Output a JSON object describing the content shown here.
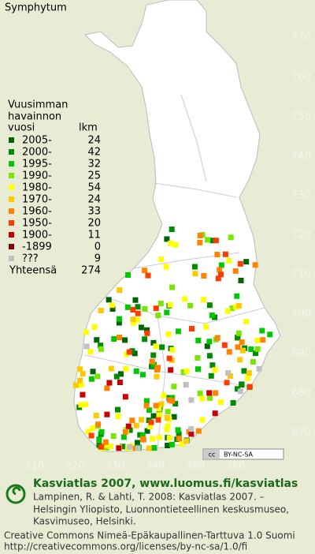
{
  "title": "Symphytum",
  "legend": {
    "heading": [
      "Vuusimman",
      "havainnon",
      "vuosi"
    ],
    "count_heading": "lkm",
    "rows": [
      {
        "label": "2005-",
        "count": 24,
        "color": "#006400"
      },
      {
        "label": "2000-",
        "count": 42,
        "color": "#008c00"
      },
      {
        "label": "1995-",
        "count": 32,
        "color": "#00c800"
      },
      {
        "label": "1990-",
        "count": 25,
        "color": "#78e600"
      },
      {
        "label": "1980-",
        "count": 54,
        "color": "#ffff00"
      },
      {
        "label": "1970-",
        "count": 24,
        "color": "#ffc800"
      },
      {
        "label": "1960-",
        "count": 33,
        "color": "#ff8200"
      },
      {
        "label": "1950-",
        "count": 20,
        "color": "#ff3c00"
      },
      {
        "label": "1900-",
        "count": 11,
        "color": "#c80000"
      },
      {
        "label": "-1899",
        "count": 0,
        "color": "#820000"
      },
      {
        "label": "???",
        "count": 9,
        "color": "#c0c0c0"
      }
    ],
    "total_label": "Yhteensä",
    "total": 274
  },
  "map": {
    "northings": [
      770,
      760,
      750,
      740,
      730,
      720,
      710,
      700,
      690,
      680,
      670
    ],
    "eastings": [
      310,
      320,
      330,
      340,
      350,
      360
    ],
    "cc_icon": "cc",
    "cc_badge": "BY-NC-SA"
  },
  "footer": {
    "site": "Kasviatlas 2007, www.luomus.fi/kasviatlas",
    "citation": [
      "Lampinen, R. & Lahti, T. 2008: Kasviatlas 2007. –",
      "Helsingin Yliopisto, Luonnontieteellinen keskusmuseo,",
      "Kasvimuseo, Helsinki."
    ],
    "license": "Creative Commons Nimeä-Epäkaupallinen-Tarttuva 1.0 Suomi",
    "url": "http://creativecommons.org/licenses/by-nc-sa/1.0/fi"
  }
}
